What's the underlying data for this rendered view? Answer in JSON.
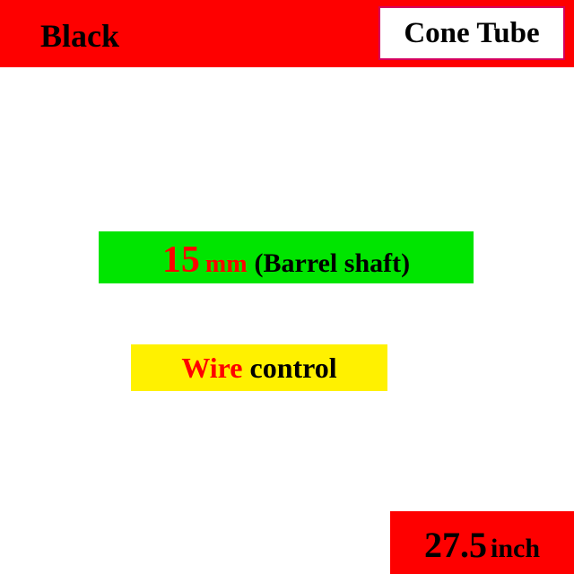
{
  "colors": {
    "red": "#fe0000",
    "black": "#000000",
    "white": "#ffffff",
    "magenta_border": "#d6005e",
    "green": "#00e500",
    "yellow": "#fff100"
  },
  "header": {
    "band_bg": "#fe0000",
    "black_label": "Black",
    "black_label_color": "#000000",
    "cone_tube": {
      "text": "Cone Tube",
      "bg": "#ffffff",
      "border": "#d6005e",
      "text_color": "#000000"
    }
  },
  "barrel": {
    "number": "15",
    "unit": "mm",
    "label": "(Barrel shaft)",
    "bg": "#00e500",
    "number_color": "#fe0000",
    "unit_color": "#fe0000",
    "label_color": "#000000"
  },
  "wire": {
    "word1": "Wire",
    "word2": "control",
    "bg": "#fff100",
    "word1_color": "#fe0000",
    "word2_color": "#000000"
  },
  "size": {
    "number": "27.5",
    "unit": "inch",
    "bg": "#fe0000",
    "number_color": "#000000",
    "unit_color": "#000000"
  }
}
